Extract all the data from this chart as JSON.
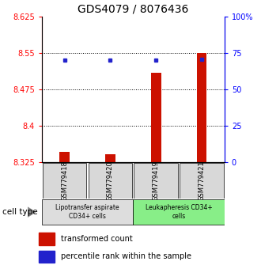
{
  "title": "GDS4079 / 8076436",
  "samples": [
    "GSM779418",
    "GSM779420",
    "GSM779419",
    "GSM779421"
  ],
  "transformed_counts": [
    8.347,
    8.342,
    8.51,
    8.55
  ],
  "percentile_ranks": [
    70,
    70,
    70,
    71
  ],
  "ylim_left": [
    8.325,
    8.625
  ],
  "ylim_right": [
    0,
    100
  ],
  "yticks_left": [
    8.325,
    8.4,
    8.475,
    8.55,
    8.625
  ],
  "yticks_right": [
    0,
    25,
    50,
    75,
    100
  ],
  "ytick_labels_left": [
    "8.325",
    "8.4",
    "8.475",
    "8.55",
    "8.625"
  ],
  "ytick_labels_right": [
    "0",
    "25",
    "50",
    "75",
    "100%"
  ],
  "hlines": [
    8.55,
    8.475,
    8.4
  ],
  "bar_color": "#cc1100",
  "dot_color": "#2222cc",
  "groups": [
    {
      "label": "Lipotransfer aspirate\nCD34+ cells",
      "color": "#dddddd"
    },
    {
      "label": "Leukapheresis CD34+\ncells",
      "color": "#88ee88"
    }
  ],
  "cell_type_label": "cell type",
  "legend_bar_label": "transformed count",
  "legend_dot_label": "percentile rank within the sample",
  "title_fontsize": 10,
  "tick_fontsize": 7,
  "label_fontsize": 7,
  "base_value": 8.325
}
